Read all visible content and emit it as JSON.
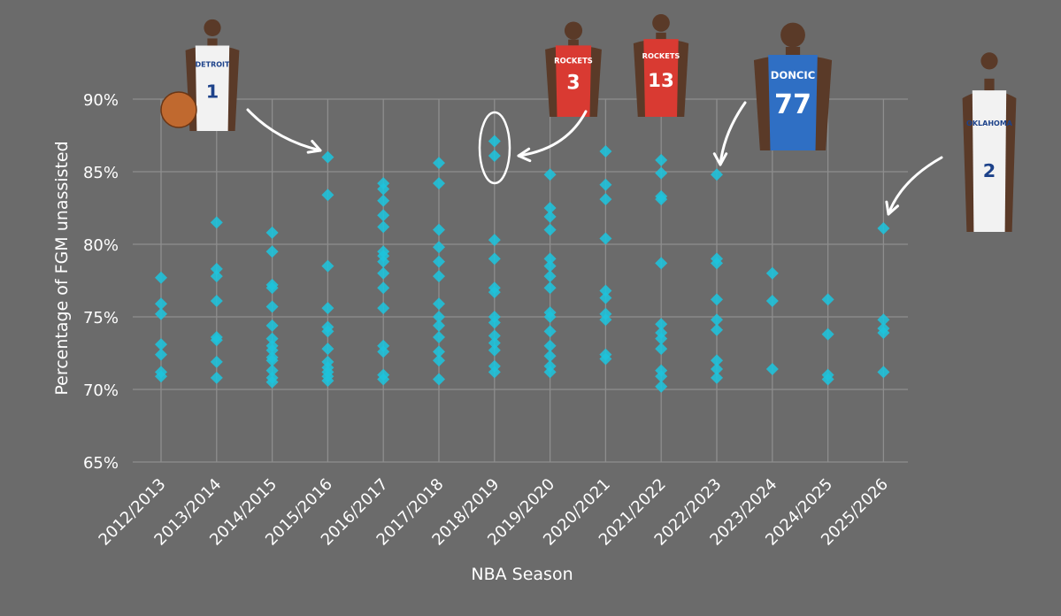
{
  "chart_data": {
    "type": "scatter",
    "title": "",
    "xlabel": "NBA Season",
    "ylabel": "Percentage of FGM unassisted",
    "ylim": [
      65,
      90
    ],
    "yticks": [
      65,
      70,
      75,
      80,
      85,
      90
    ],
    "ytick_labels": [
      "65%",
      "70%",
      "75%",
      "80%",
      "85%",
      "90%"
    ],
    "categories": [
      "2012/2013",
      "2013/2014",
      "2014/2015",
      "2015/2016",
      "2016/2017",
      "2017/2018",
      "2018/2019",
      "2019/2020",
      "2020/2021",
      "2021/2022",
      "2022/2023",
      "2023/2024",
      "2024/2025",
      "2025/2026"
    ],
    "grid": true,
    "marker": "diamond",
    "series": [
      {
        "values": [
          [
            77.7,
            75.9,
            75.2,
            73.1,
            72.4,
            71.2,
            70.9
          ],
          [
            81.5,
            78.3,
            77.8,
            76.1,
            73.6,
            73.4,
            71.9,
            70.8
          ],
          [
            80.8,
            79.5,
            77.2,
            77.0,
            75.7,
            74.4,
            73.5,
            73.0,
            72.7,
            72.2,
            72.0,
            71.3,
            70.8,
            70.5
          ],
          [
            86.0,
            83.4,
            78.5,
            75.6,
            74.3,
            74.0,
            72.8,
            71.9,
            71.5,
            71.2,
            70.9,
            70.6
          ],
          [
            84.2,
            83.8,
            83.0,
            82.0,
            81.2,
            79.5,
            79.2,
            78.8,
            78.0,
            77.0,
            75.6,
            73.0,
            72.6,
            71.0,
            70.7
          ],
          [
            85.6,
            84.2,
            81.0,
            79.8,
            78.8,
            77.8,
            75.9,
            75.0,
            74.4,
            73.6,
            72.6,
            72.0,
            70.7
          ],
          [
            87.1,
            86.1,
            80.3,
            79.0,
            77.0,
            76.7,
            75.0,
            74.6,
            73.7,
            73.2,
            72.7,
            71.6,
            71.2
          ],
          [
            84.8,
            82.5,
            81.9,
            81.0,
            79.0,
            78.5,
            77.8,
            77.0,
            75.3,
            75.0,
            74.0,
            73.0,
            72.3,
            71.6,
            71.2
          ],
          [
            86.4,
            84.1,
            83.1,
            80.4,
            76.8,
            76.3,
            75.2,
            74.8,
            72.4,
            72.1
          ],
          [
            85.8,
            84.9,
            83.3,
            83.1,
            78.7,
            74.5,
            73.9,
            73.5,
            72.8,
            71.3,
            70.9,
            70.2
          ],
          [
            84.8,
            79.0,
            78.7,
            76.2,
            74.8,
            74.1,
            72.0,
            71.4,
            70.8
          ],
          [
            78.0,
            76.1,
            71.4
          ],
          [
            76.2,
            73.8,
            71.0,
            70.7
          ],
          [
            81.1,
            74.8,
            74.2,
            73.9,
            71.2
          ]
        ]
      }
    ],
    "colors": {
      "background": "#6b6b6b",
      "marker": "#1ec3dc",
      "grid": "#8e8e8e",
      "text": "#ffffff"
    }
  },
  "annotations": [
    {
      "player_jersey": "1",
      "team_text": "DETROIT",
      "jersey_color": "#f2f2f2",
      "target_season": "2015/2016",
      "target_value": 86.0
    },
    {
      "player_jersey": "3",
      "team_text": "ROCKETS",
      "jersey_color": "#d93a32",
      "target_season": "2018/2019",
      "target_value": 86.6,
      "circled": true
    },
    {
      "player_jersey": "13",
      "team_text": "ROCKETS",
      "jersey_color": "#d93a32",
      "target_season": "2018/2019",
      "target_value": 86.6
    },
    {
      "player_jersey": "77",
      "team_text": "DONCIC",
      "jersey_color": "#2f6fc4",
      "target_season": "2022/2023",
      "target_value": 84.8
    },
    {
      "player_jersey": "2",
      "team_text": "OKLAHOMA",
      "jersey_color": "#f2f2f2",
      "target_season": "2025/2026",
      "target_value": 81.1
    }
  ]
}
